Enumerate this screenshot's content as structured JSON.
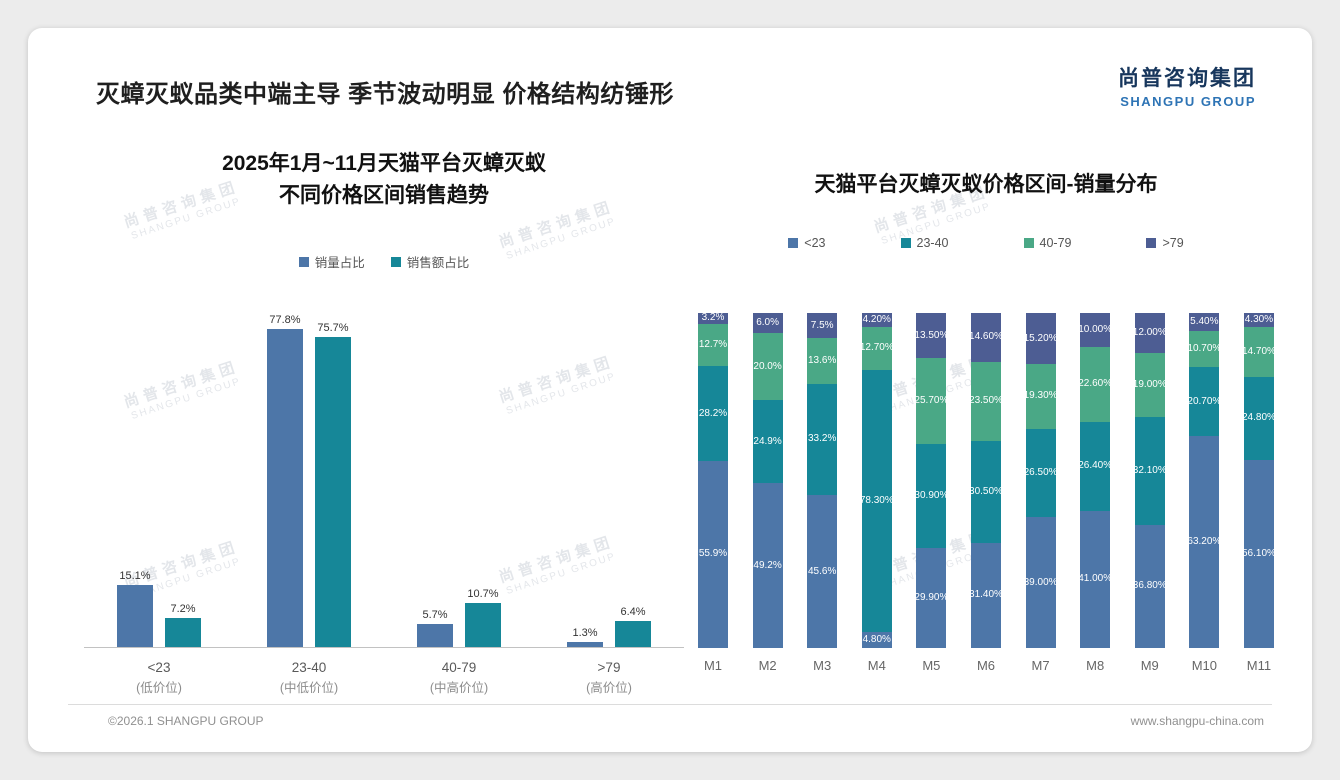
{
  "page": {
    "title": "灭蟑灭蚁品类中端主导 季节波动明显 价格结构纺锤形",
    "logo": {
      "cn": "尚普咨询集团",
      "en": "SHANGPU GROUP"
    },
    "watermark": {
      "cn": "尚普咨询集团",
      "en": "SHANGPU GROUP"
    },
    "footer": {
      "left": "©2026.1 SHANGPU GROUP",
      "right": "www.shangpu-china.com"
    }
  },
  "colors": {
    "blue": "#4d76a8",
    "teal": "#168798",
    "green": "#4aa886",
    "purple": "#4d5d93"
  },
  "chart_data": [
    {
      "type": "bar",
      "title_lines": [
        "2025年1月~11月天猫平台灭蟑灭蚁",
        "不同价格区间销售趋势"
      ],
      "categories": [
        [
          "<23",
          "(低价位)"
        ],
        [
          "23-40",
          "(中低价位)"
        ],
        [
          "40-79",
          "(中高价位)"
        ],
        [
          ">79",
          "(高价位)"
        ]
      ],
      "series": [
        {
          "name": "销量占比",
          "color_key": "blue",
          "values": [
            15.1,
            77.8,
            5.7,
            1.3
          ],
          "labels": [
            "15.1%",
            "77.8%",
            "5.7%",
            "1.3%"
          ]
        },
        {
          "name": "销售额占比",
          "color_key": "teal",
          "values": [
            7.2,
            75.7,
            10.7,
            6.4
          ],
          "labels": [
            "7.2%",
            "75.7%",
            "10.7%",
            "6.4%"
          ]
        }
      ],
      "ylim": [
        0,
        100
      ],
      "grid": false,
      "legend_position": "top"
    },
    {
      "type": "stacked-bar-100",
      "title": "天猫平台灭蟑灭蚁价格区间-销量分布",
      "categories": [
        "M1",
        "M2",
        "M3",
        "M4",
        "M5",
        "M6",
        "M7",
        "M8",
        "M9",
        "M10",
        "M11"
      ],
      "stack_order_bottom_to_top": [
        "<23",
        "23-40",
        "40-79",
        ">79"
      ],
      "series": [
        {
          "name": "<23",
          "color_key": "blue",
          "values": [
            55.9,
            49.2,
            45.6,
            4.8,
            29.9,
            31.4,
            39.0,
            41.0,
            36.8,
            63.2,
            56.1
          ],
          "labels": [
            "55.9%",
            "49.2%",
            "45.6%",
            "4.80%",
            "29.90%",
            "31.40%",
            "39.00%",
            "41.00%",
            "36.80%",
            "63.20%",
            "56.10%"
          ]
        },
        {
          "name": "23-40",
          "color_key": "teal",
          "values": [
            28.2,
            24.9,
            33.2,
            78.3,
            30.9,
            30.5,
            26.5,
            26.4,
            32.1,
            20.7,
            24.8
          ],
          "labels": [
            "28.2%",
            "24.9%",
            "33.2%",
            "78.30%",
            "30.90%",
            "30.50%",
            "26.50%",
            "26.40%",
            "32.10%",
            "20.70%",
            "24.80%"
          ]
        },
        {
          "name": "40-79",
          "color_key": "green",
          "values": [
            12.7,
            20.0,
            13.6,
            12.7,
            25.7,
            23.5,
            19.3,
            22.6,
            19.0,
            10.7,
            14.7
          ],
          "labels": [
            "12.7%",
            "20.0%",
            "13.6%",
            "12.70%",
            "25.70%",
            "23.50%",
            "19.30%",
            "22.60%",
            "19.00%",
            "10.70%",
            "14.70%"
          ]
        },
        {
          "name": ">79",
          "color_key": "purple",
          "values": [
            3.2,
            6.0,
            7.5,
            4.2,
            13.5,
            14.6,
            15.2,
            10.0,
            12.0,
            5.4,
            4.3
          ],
          "labels": [
            "3.2%",
            "6.0%",
            "7.5%",
            "4.20%",
            "13.50%",
            "14.60%",
            "15.20%",
            "10.00%",
            "12.00%",
            "5.40%",
            "4.30%"
          ]
        }
      ],
      "ylim": [
        0,
        100
      ],
      "grid": false,
      "legend_position": "top"
    }
  ]
}
